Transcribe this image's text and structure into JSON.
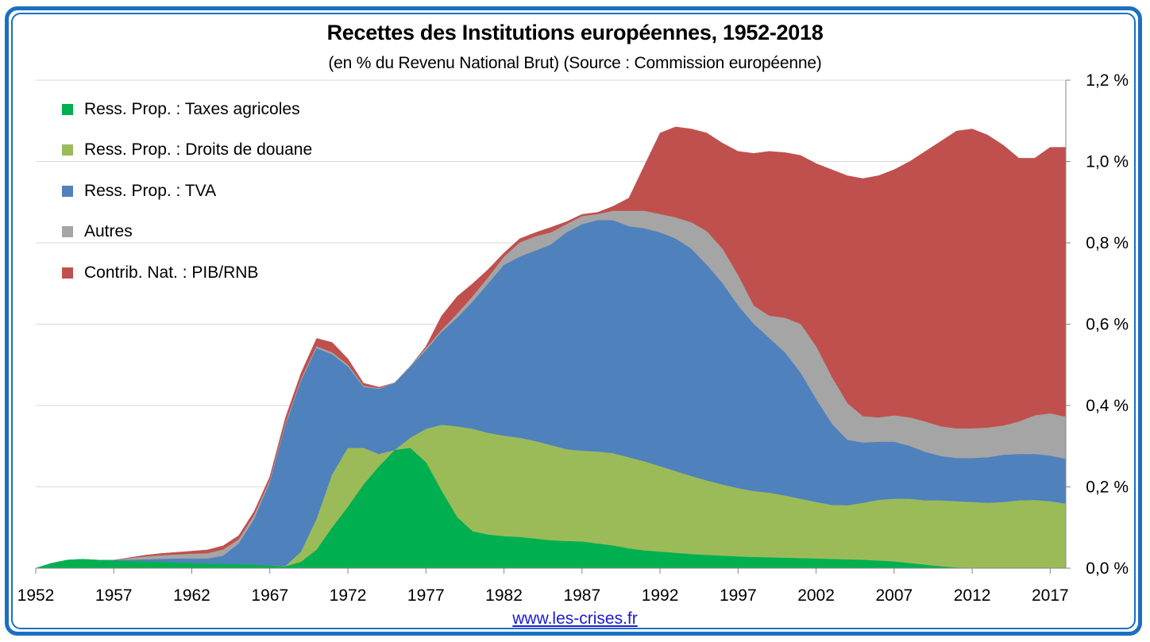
{
  "title": "Recettes des Institutions européennes, 1952-2018",
  "subtitle": "(en % du Revenu National Brut) (Source : Commission européenne)",
  "source_link": "www.les-crises.fr",
  "legend": [
    {
      "label": "Ress. Prop. : Taxes agricoles",
      "color": "#00b050"
    },
    {
      "label": "Ress. Prop. : Droits de douane",
      "color": "#9bbb59"
    },
    {
      "label": "Ress. Prop. : TVA",
      "color": "#4f81bd"
    },
    {
      "label": "Autres",
      "color": "#a5a5a5"
    },
    {
      "label": "Contrib. Nat. : PIB/RNB",
      "color": "#c0504d"
    }
  ],
  "chart_data": {
    "type": "area",
    "stacked": true,
    "title": "Recettes des Institutions européennes, 1952-2018",
    "subtitle": "(en % du Revenu National Brut) (Source : Commission européenne)",
    "xlabel": "",
    "ylabel": "",
    "y_axis_side": "right",
    "ylim": [
      0,
      1.2
    ],
    "y_ticks": [
      0.0,
      0.2,
      0.4,
      0.6,
      0.8,
      1.0,
      1.2
    ],
    "y_tick_labels": [
      "0,0 %",
      "0,2 %",
      "0,4 %",
      "0,6 %",
      "0,8 %",
      "1,0 %",
      "1,2 %"
    ],
    "x_ticks": [
      1952,
      1957,
      1962,
      1967,
      1972,
      1977,
      1982,
      1987,
      1992,
      1997,
      2002,
      2007,
      2012,
      2017
    ],
    "xlim": [
      1952,
      2018
    ],
    "grid": true,
    "legend_position": "top-left",
    "x": [
      1952,
      1953,
      1954,
      1955,
      1956,
      1957,
      1958,
      1959,
      1960,
      1961,
      1962,
      1963,
      1964,
      1965,
      1966,
      1967,
      1968,
      1969,
      1970,
      1971,
      1972,
      1973,
      1974,
      1975,
      1976,
      1977,
      1978,
      1979,
      1980,
      1981,
      1982,
      1983,
      1984,
      1985,
      1986,
      1987,
      1988,
      1989,
      1990,
      1991,
      1992,
      1993,
      1994,
      1995,
      1996,
      1997,
      1998,
      1999,
      2000,
      2001,
      2002,
      2003,
      2004,
      2005,
      2006,
      2007,
      2008,
      2009,
      2010,
      2011,
      2012,
      2013,
      2014,
      2015,
      2016,
      2017,
      2018
    ],
    "series_cumulative_tops": [
      {
        "name": "Ress. Prop. : Taxes agricoles",
        "color": "#00b050",
        "values": [
          0,
          0.012,
          0.02,
          0.022,
          0.02,
          0.018,
          0.017,
          0.016,
          0.015,
          0.013,
          0.012,
          0.011,
          0.01,
          0.009,
          0.008,
          0.006,
          0.004,
          0.015,
          0.045,
          0.1,
          0.15,
          0.205,
          0.25,
          0.29,
          0.295,
          0.26,
          0.19,
          0.125,
          0.09,
          0.082,
          0.078,
          0.076,
          0.072,
          0.068,
          0.066,
          0.065,
          0.06,
          0.055,
          0.048,
          0.043,
          0.04,
          0.037,
          0.034,
          0.032,
          0.03,
          0.028,
          0.027,
          0.026,
          0.025,
          0.024,
          0.023,
          0.022,
          0.021,
          0.02,
          0.018,
          0.016,
          0.012,
          0.008,
          0.004,
          0.001,
          0,
          0,
          0,
          0,
          0,
          0,
          0
        ]
      },
      {
        "name": "Ress. Prop. : Droits de douane",
        "color": "#9bbb59",
        "values": [
          0,
          0.012,
          0.02,
          0.022,
          0.02,
          0.018,
          0.017,
          0.016,
          0.015,
          0.013,
          0.012,
          0.011,
          0.01,
          0.009,
          0.008,
          0.006,
          0.005,
          0.04,
          0.12,
          0.23,
          0.295,
          0.295,
          0.28,
          0.29,
          0.32,
          0.342,
          0.352,
          0.348,
          0.342,
          0.332,
          0.325,
          0.32,
          0.312,
          0.302,
          0.292,
          0.288,
          0.286,
          0.282,
          0.272,
          0.262,
          0.25,
          0.238,
          0.226,
          0.215,
          0.205,
          0.196,
          0.189,
          0.185,
          0.178,
          0.17,
          0.162,
          0.155,
          0.154,
          0.16,
          0.167,
          0.17,
          0.17,
          0.166,
          0.166,
          0.164,
          0.162,
          0.16,
          0.162,
          0.166,
          0.167,
          0.164,
          0.158
        ]
      },
      {
        "name": "Ress. Prop. : TVA",
        "color": "#4f81bd",
        "values": [
          0,
          0.012,
          0.02,
          0.022,
          0.02,
          0.02,
          0.02,
          0.021,
          0.022,
          0.023,
          0.023,
          0.023,
          0.03,
          0.06,
          0.12,
          0.21,
          0.35,
          0.46,
          0.54,
          0.525,
          0.495,
          0.445,
          0.44,
          0.455,
          0.495,
          0.535,
          0.58,
          0.615,
          0.655,
          0.7,
          0.745,
          0.765,
          0.78,
          0.795,
          0.825,
          0.845,
          0.855,
          0.855,
          0.84,
          0.835,
          0.825,
          0.81,
          0.785,
          0.745,
          0.7,
          0.645,
          0.6,
          0.565,
          0.53,
          0.48,
          0.415,
          0.355,
          0.315,
          0.308,
          0.31,
          0.31,
          0.3,
          0.285,
          0.275,
          0.27,
          0.27,
          0.272,
          0.278,
          0.28,
          0.28,
          0.276,
          0.268
        ]
      },
      {
        "name": "Autres",
        "color": "#a5a5a5",
        "values": [
          0,
          0.012,
          0.02,
          0.022,
          0.02,
          0.02,
          0.024,
          0.028,
          0.031,
          0.033,
          0.035,
          0.036,
          0.045,
          0.07,
          0.13,
          0.215,
          0.355,
          0.465,
          0.545,
          0.53,
          0.5,
          0.448,
          0.442,
          0.456,
          0.497,
          0.54,
          0.585,
          0.625,
          0.668,
          0.715,
          0.765,
          0.8,
          0.815,
          0.825,
          0.845,
          0.865,
          0.87,
          0.878,
          0.878,
          0.878,
          0.87,
          0.862,
          0.85,
          0.828,
          0.785,
          0.72,
          0.645,
          0.62,
          0.615,
          0.6,
          0.545,
          0.47,
          0.405,
          0.373,
          0.37,
          0.375,
          0.37,
          0.36,
          0.348,
          0.343,
          0.343,
          0.345,
          0.35,
          0.36,
          0.375,
          0.38,
          0.372
        ]
      },
      {
        "name": "Contrib. Nat. : PIB/RNB",
        "color": "#c0504d",
        "values": [
          0,
          0.012,
          0.02,
          0.022,
          0.02,
          0.02,
          0.026,
          0.032,
          0.036,
          0.039,
          0.042,
          0.045,
          0.055,
          0.08,
          0.14,
          0.225,
          0.37,
          0.48,
          0.565,
          0.555,
          0.515,
          0.455,
          0.445,
          0.456,
          0.497,
          0.545,
          0.62,
          0.668,
          0.7,
          0.735,
          0.775,
          0.81,
          0.825,
          0.838,
          0.852,
          0.87,
          0.875,
          0.89,
          0.91,
          0.99,
          1.07,
          1.085,
          1.08,
          1.07,
          1.045,
          1.025,
          1.02,
          1.025,
          1.022,
          1.015,
          0.995,
          0.98,
          0.965,
          0.958,
          0.965,
          0.98,
          1.0,
          1.025,
          1.05,
          1.075,
          1.08,
          1.065,
          1.04,
          1.008,
          1.008,
          1.035,
          1.035
        ]
      }
    ]
  }
}
